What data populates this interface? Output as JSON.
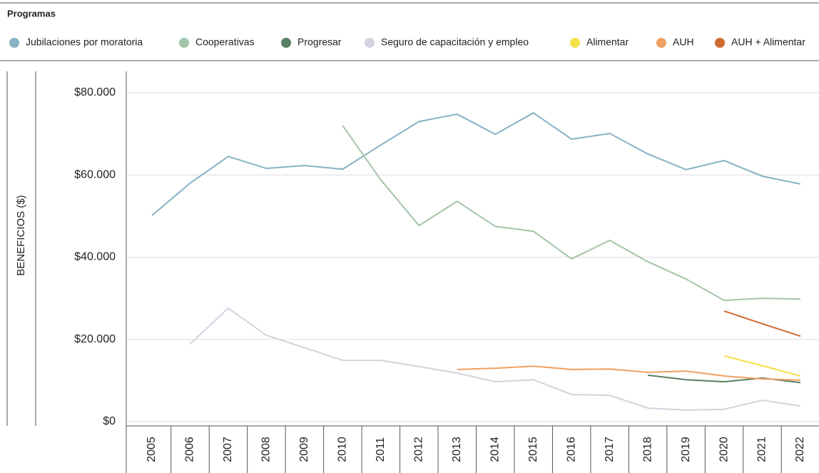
{
  "chart_data": {
    "type": "line",
    "legend_title": "Programas",
    "y_label": "BENEFICIOS ($)",
    "categories": [
      "2005",
      "2006",
      "2007",
      "2008",
      "2009",
      "2010",
      "2011",
      "2012",
      "2013",
      "2014",
      "2015",
      "2016",
      "2017",
      "2018",
      "2019",
      "2020",
      "2021",
      "2022"
    ],
    "ylim": [
      0,
      80000
    ],
    "yticks": [
      {
        "value": 0,
        "label": "$0"
      },
      {
        "value": 20000,
        "label": "$20.000"
      },
      {
        "value": 40000,
        "label": "$40.000"
      },
      {
        "value": 60000,
        "label": "$60.000"
      },
      {
        "value": 80000,
        "label": "$80.000"
      }
    ],
    "grid": true,
    "series": [
      {
        "name": "Jubilaciones por moratoria",
        "color": "#86b2c4",
        "values": [
          50150,
          58000,
          64500,
          61600,
          62300,
          61400,
          67300,
          73000,
          74800,
          69900,
          75100,
          68700,
          70100,
          65100,
          61300,
          63500,
          59700,
          57800
        ]
      },
      {
        "name": "Cooperativas",
        "color": "#a4c4a6",
        "values": [
          null,
          null,
          null,
          null,
          null,
          72000,
          58800,
          47700,
          53600,
          47500,
          46300,
          39600,
          44100,
          38900,
          34700,
          29500,
          30000,
          29800
        ]
      },
      {
        "name": "Progresar",
        "color": "#5a7f64",
        "values": [
          null,
          null,
          null,
          null,
          null,
          null,
          null,
          null,
          null,
          null,
          null,
          null,
          null,
          11300,
          10200,
          9700,
          10600,
          9500
        ]
      },
      {
        "name": "Seguro de capacitación y empleo",
        "color": "#d3d3e0",
        "values": [
          null,
          18900,
          27600,
          21000,
          18000,
          14900,
          14900,
          13400,
          11800,
          9700,
          10200,
          6600,
          6400,
          3300,
          2800,
          3000,
          5200,
          3800
        ]
      },
      {
        "name": "Alimentar",
        "color": "#f4e04a",
        "values": [
          null,
          null,
          null,
          null,
          null,
          null,
          null,
          null,
          null,
          null,
          null,
          null,
          null,
          null,
          null,
          16000,
          13600,
          11100
        ]
      },
      {
        "name": "AUH",
        "color": "#f0a060",
        "values": [
          null,
          null,
          null,
          null,
          null,
          null,
          null,
          null,
          12700,
          13000,
          13500,
          12700,
          12800,
          12000,
          12300,
          11100,
          10400,
          10100
        ]
      },
      {
        "name": "AUH + Alimentar",
        "color": "#d06a30",
        "values": [
          null,
          null,
          null,
          null,
          null,
          null,
          null,
          null,
          null,
          null,
          null,
          null,
          null,
          null,
          null,
          26900,
          23800,
          20800
        ]
      }
    ]
  }
}
